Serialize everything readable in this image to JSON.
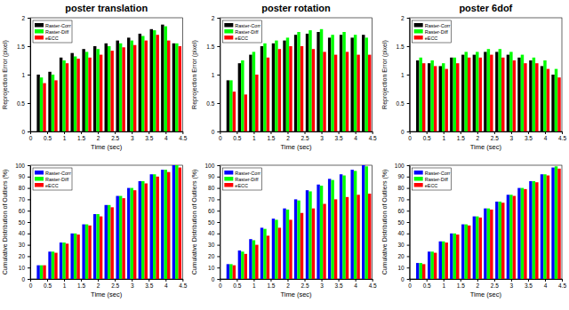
{
  "chart_data": [
    {
      "type": "bar",
      "title": "poster translation",
      "x_label": "Time (sec)",
      "y_label": "Reprojection Error (pixel)",
      "x": [
        0.33,
        0.67,
        1,
        1.33,
        1.67,
        2,
        2.33,
        2.67,
        3,
        3.33,
        3.67,
        4,
        4.33
      ],
      "xlim": [
        0,
        4.5
      ],
      "xticks": [
        0,
        0.5,
        1,
        1.5,
        2,
        2.5,
        3,
        3.5,
        4,
        4.5
      ],
      "ylim": [
        0,
        2
      ],
      "yticks": [
        0,
        0.5,
        1,
        1.5,
        2
      ],
      "legend": "upper left",
      "series": [
        {
          "name": "Raster-Corr",
          "color": "#000000",
          "values": [
            1.0,
            1.05,
            1.3,
            1.38,
            1.45,
            1.5,
            1.55,
            1.6,
            1.65,
            1.72,
            1.8,
            1.88,
            1.55
          ]
        },
        {
          "name": "Raster-Diff",
          "color": "#00ff00",
          "values": [
            0.95,
            1.0,
            1.25,
            1.32,
            1.4,
            1.45,
            1.5,
            1.55,
            1.6,
            1.68,
            1.78,
            1.85,
            1.55
          ]
        },
        {
          "name": "eECC",
          "color": "#ff0000",
          "values": [
            0.85,
            0.9,
            1.2,
            1.28,
            1.3,
            1.35,
            1.42,
            1.48,
            1.52,
            1.6,
            1.7,
            1.6,
            1.5
          ]
        }
      ]
    },
    {
      "type": "bar",
      "title": "poster rotation",
      "x_label": "Time (sec)",
      "y_label": "Reprojection Error (pixel)",
      "x": [
        0.33,
        0.67,
        1,
        1.33,
        1.67,
        2,
        2.33,
        2.67,
        3,
        3.33,
        3.67,
        4,
        4.33
      ],
      "xlim": [
        0,
        4.5
      ],
      "xticks": [
        0,
        0.5,
        1,
        1.5,
        2,
        2.5,
        3,
        3.5,
        4,
        4.5
      ],
      "ylim": [
        0,
        2
      ],
      "yticks": [
        0,
        0.5,
        1,
        1.5,
        2
      ],
      "legend": "upper left",
      "series": [
        {
          "name": "Raster-Corr",
          "color": "#000000",
          "values": [
            0.9,
            1.2,
            1.35,
            1.5,
            1.55,
            1.6,
            1.7,
            1.72,
            1.75,
            1.65,
            1.7,
            1.65,
            1.7
          ]
        },
        {
          "name": "Raster-Diff",
          "color": "#00ff00",
          "values": [
            0.9,
            1.25,
            1.4,
            1.55,
            1.6,
            1.65,
            1.75,
            1.78,
            1.8,
            1.7,
            1.75,
            1.7,
            1.65
          ]
        },
        {
          "name": "eECC",
          "color": "#ff0000",
          "values": [
            0.7,
            0.65,
            1.0,
            1.3,
            1.45,
            1.5,
            1.5,
            1.45,
            1.4,
            1.35,
            1.4,
            1.35,
            1.35
          ]
        }
      ]
    },
    {
      "type": "bar",
      "title": "poster 6dof",
      "x_label": "Time (sec)",
      "y_label": "Reprojection Error (pixel)",
      "x": [
        0.33,
        0.67,
        1,
        1.33,
        1.67,
        2,
        2.33,
        2.67,
        3,
        3.33,
        3.67,
        4,
        4.33
      ],
      "xlim": [
        0,
        4.5
      ],
      "xticks": [
        0,
        0.5,
        1,
        1.5,
        2,
        2.5,
        3,
        3.5,
        4,
        4.5
      ],
      "ylim": [
        0,
        2
      ],
      "yticks": [
        0,
        0.5,
        1,
        1.5,
        2
      ],
      "legend": "upper left",
      "series": [
        {
          "name": "Raster-Corr",
          "color": "#000000",
          "values": [
            1.25,
            1.2,
            1.15,
            1.3,
            1.35,
            1.35,
            1.4,
            1.4,
            1.35,
            1.3,
            1.25,
            1.15,
            1.0
          ]
        },
        {
          "name": "Raster-Diff",
          "color": "#00ff00",
          "values": [
            1.3,
            1.25,
            1.2,
            1.3,
            1.4,
            1.4,
            1.45,
            1.45,
            1.4,
            1.35,
            1.3,
            1.25,
            1.1
          ]
        },
        {
          "name": "eECC",
          "color": "#ff0000",
          "values": [
            1.2,
            1.15,
            1.1,
            1.2,
            1.3,
            1.3,
            1.35,
            1.3,
            1.25,
            1.2,
            1.2,
            1.1,
            0.95
          ]
        }
      ]
    },
    {
      "type": "bar",
      "x_label": "Time (sec)",
      "y_label": "Cumulative Distribution of Outliers (%)",
      "x": [
        0.33,
        0.67,
        1,
        1.33,
        1.67,
        2,
        2.33,
        2.67,
        3,
        3.33,
        3.67,
        4,
        4.33
      ],
      "xlim": [
        0,
        4.5
      ],
      "xticks": [
        0,
        0.5,
        1,
        1.5,
        2,
        2.5,
        3,
        3.5,
        4,
        4.5
      ],
      "ylim": [
        0,
        100
      ],
      "yticks": [
        0,
        10,
        20,
        30,
        40,
        50,
        60,
        70,
        80,
        90,
        100
      ],
      "legend": "upper left",
      "series": [
        {
          "name": "Raster-Corr",
          "color": "#0000ff",
          "values": [
            12,
            24,
            32,
            40,
            48,
            57,
            65,
            73,
            80,
            86,
            92,
            96,
            100
          ]
        },
        {
          "name": "Raster-Diff",
          "color": "#00ff00",
          "values": [
            12,
            24,
            32,
            40,
            48,
            57,
            65,
            73,
            80,
            86,
            92,
            96,
            100
          ]
        },
        {
          "name": "eECC",
          "color": "#ff0000",
          "values": [
            12,
            23,
            31,
            39,
            47,
            55,
            63,
            71,
            78,
            84,
            90,
            94,
            98
          ]
        }
      ]
    },
    {
      "type": "bar",
      "x_label": "Time (sec)",
      "y_label": "Cumulative Distribution of Outliers (%)",
      "x": [
        0.33,
        0.67,
        1,
        1.33,
        1.67,
        2,
        2.33,
        2.67,
        3,
        3.33,
        3.67,
        4,
        4.33
      ],
      "xlim": [
        0,
        4.5
      ],
      "xticks": [
        0,
        0.5,
        1,
        1.5,
        2,
        2.5,
        3,
        3.5,
        4,
        4.5
      ],
      "ylim": [
        0,
        100
      ],
      "yticks": [
        0,
        10,
        20,
        30,
        40,
        50,
        60,
        70,
        80,
        90,
        100
      ],
      "legend": "upper left",
      "series": [
        {
          "name": "Raster-Corr",
          "color": "#0000ff",
          "values": [
            13,
            25,
            35,
            45,
            53,
            62,
            70,
            78,
            83,
            88,
            92,
            96,
            100
          ]
        },
        {
          "name": "Raster-Diff",
          "color": "#00ff00",
          "values": [
            13,
            24,
            34,
            44,
            52,
            61,
            69,
            77,
            82,
            87,
            91,
            95,
            99
          ]
        },
        {
          "name": "eECC",
          "color": "#ff0000",
          "values": [
            12,
            22,
            30,
            38,
            45,
            52,
            58,
            62,
            66,
            70,
            72,
            74,
            75
          ]
        }
      ]
    },
    {
      "type": "bar",
      "x_label": "Time (sec)",
      "y_label": "Cumulative Distribution of Outliers (%)",
      "x": [
        0.33,
        0.67,
        1,
        1.33,
        1.67,
        2,
        2.33,
        2.67,
        3,
        3.33,
        3.67,
        4,
        4.33
      ],
      "xlim": [
        0,
        4.5
      ],
      "xticks": [
        0,
        0.5,
        1,
        1.5,
        2,
        2.5,
        3,
        3.5,
        4,
        4.5
      ],
      "ylim": [
        0,
        100
      ],
      "yticks": [
        0,
        10,
        20,
        30,
        40,
        50,
        60,
        70,
        80,
        90,
        100
      ],
      "legend": "upper left",
      "series": [
        {
          "name": "Raster-Corr",
          "color": "#0000ff",
          "values": [
            14,
            24,
            33,
            40,
            48,
            55,
            62,
            68,
            74,
            80,
            86,
            92,
            98
          ]
        },
        {
          "name": "Raster-Diff",
          "color": "#00ff00",
          "values": [
            14,
            24,
            33,
            40,
            48,
            55,
            62,
            68,
            74,
            80,
            86,
            92,
            99
          ]
        },
        {
          "name": "eECC",
          "color": "#ff0000",
          "values": [
            13,
            23,
            32,
            39,
            47,
            54,
            61,
            67,
            73,
            79,
            85,
            91,
            97
          ]
        }
      ]
    }
  ]
}
